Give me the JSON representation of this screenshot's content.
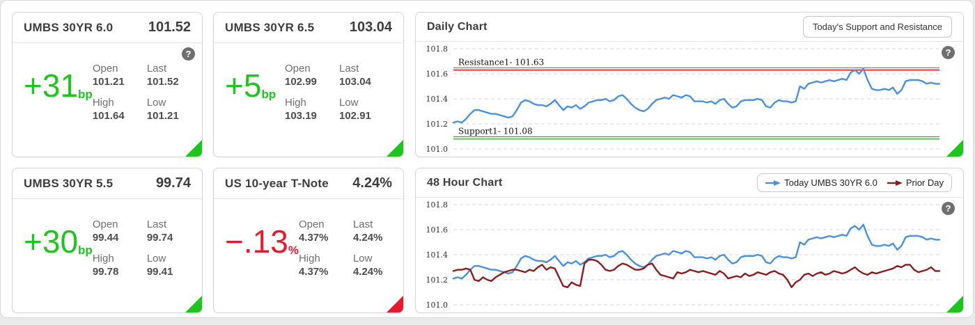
{
  "icons": {
    "help": "?"
  },
  "colors": {
    "up": "#1fc41f",
    "down": "#e8192d",
    "today_line": "#4a90e0",
    "prior_line": "#8e1b1b",
    "resistance_line": "#e02020",
    "support_line": "#2fd32f"
  },
  "stat_labels": {
    "open": "Open",
    "last": "Last",
    "high": "High",
    "low": "Low"
  },
  "cards": [
    {
      "title": "UMBS 30YR 6.0",
      "price": "101.52",
      "change": "+31",
      "change_unit": "bp",
      "trend": "up",
      "open": "101.21",
      "last": "101.52",
      "high": "101.64",
      "low": "101.21",
      "has_help": true
    },
    {
      "title": "UMBS 30YR 6.5",
      "price": "103.04",
      "change": "+5",
      "change_unit": "bp",
      "trend": "up",
      "open": "102.99",
      "last": "103.04",
      "high": "103.19",
      "low": "102.91",
      "has_help": false
    },
    {
      "title": "UMBS 30YR 5.5",
      "price": "99.74",
      "change": "+30",
      "change_unit": "bp",
      "trend": "up",
      "open": "99.44",
      "last": "99.74",
      "high": "99.78",
      "low": "99.41",
      "has_help": false
    },
    {
      "title": "US 10-year T-Note",
      "price": "4.24%",
      "change": "−.13",
      "change_unit": "%",
      "trend": "down",
      "open": "4.37%",
      "last": "4.24%",
      "high": "4.37%",
      "low": "4.24%",
      "has_help": false
    }
  ],
  "panels": {
    "daily": {
      "title": "Daily Chart",
      "button_label": "Today's Support and Resistance"
    },
    "hour48": {
      "title": "48 Hour Chart"
    }
  },
  "chart_data": [
    {
      "id": "chart-daily",
      "type": "line",
      "title": "Daily Chart",
      "ylim": [
        101.0,
        101.8
      ],
      "yticks": [
        101.8,
        101.6,
        101.4,
        101.2,
        101.0
      ],
      "ytick_labels": [
        "101.8",
        "101.6",
        "101.4",
        "101.2",
        "101.0"
      ],
      "grid": "dashed",
      "annotations": [
        {
          "label": "Resistance1- 101.63",
          "value": 101.63,
          "color": "#e02020"
        },
        {
          "label": "Support1- 101.08",
          "value": 101.08,
          "color": "#2fd32f"
        }
      ],
      "series": [
        {
          "name": "Today UMBS 30YR 6.0",
          "color": "#4a90e0",
          "values": [
            101.21,
            101.22,
            101.21,
            101.24,
            101.28,
            101.31,
            101.31,
            101.3,
            101.29,
            101.28,
            101.28,
            101.27,
            101.26,
            101.25,
            101.26,
            101.31,
            101.37,
            101.39,
            101.38,
            101.36,
            101.35,
            101.35,
            101.34,
            101.36,
            101.39,
            101.35,
            101.31,
            101.34,
            101.33,
            101.35,
            101.32,
            101.34,
            101.37,
            101.38,
            101.39,
            101.39,
            101.4,
            101.38,
            101.39,
            101.42,
            101.43,
            101.4,
            101.36,
            101.33,
            101.31,
            101.3,
            101.32,
            101.36,
            101.39,
            101.4,
            101.41,
            101.4,
            101.43,
            101.42,
            101.41,
            101.43,
            101.42,
            101.38,
            101.38,
            101.38,
            101.37,
            101.38,
            101.36,
            101.39,
            101.4,
            101.36,
            101.33,
            101.34,
            101.38,
            101.39,
            101.39,
            101.39,
            101.4,
            101.39,
            101.34,
            101.33,
            101.37,
            101.39,
            101.38,
            101.38,
            101.37,
            101.38,
            101.5,
            101.48,
            101.52,
            101.53,
            101.54,
            101.53,
            101.54,
            101.55,
            101.54,
            101.55,
            101.56,
            101.55,
            101.61,
            101.63,
            101.6,
            101.64,
            101.55,
            101.48,
            101.47,
            101.47,
            101.48,
            101.47,
            101.49,
            101.44,
            101.47,
            101.54,
            101.55,
            101.55,
            101.55,
            101.54,
            101.52,
            101.53,
            101.52,
            101.52
          ]
        }
      ]
    },
    {
      "id": "chart-48h",
      "type": "line",
      "title": "48 Hour Chart",
      "ylim": [
        101.0,
        101.8
      ],
      "yticks": [
        101.8,
        101.6,
        101.4,
        101.2,
        101.0
      ],
      "ytick_labels": [
        "101.8",
        "101.6",
        "101.4",
        "101.2",
        "101.0"
      ],
      "grid": "dashed",
      "legend_position": "top-right",
      "annotations": [],
      "series": [
        {
          "name": "Today UMBS 30YR 6.0",
          "color": "#4a90e0",
          "values": [
            101.21,
            101.22,
            101.21,
            101.24,
            101.28,
            101.31,
            101.31,
            101.3,
            101.29,
            101.28,
            101.28,
            101.27,
            101.26,
            101.25,
            101.26,
            101.31,
            101.37,
            101.39,
            101.38,
            101.36,
            101.35,
            101.35,
            101.34,
            101.36,
            101.39,
            101.35,
            101.31,
            101.34,
            101.33,
            101.35,
            101.32,
            101.34,
            101.37,
            101.38,
            101.39,
            101.39,
            101.4,
            101.38,
            101.39,
            101.42,
            101.43,
            101.4,
            101.36,
            101.33,
            101.31,
            101.3,
            101.32,
            101.36,
            101.39,
            101.4,
            101.41,
            101.4,
            101.43,
            101.42,
            101.41,
            101.43,
            101.42,
            101.38,
            101.38,
            101.38,
            101.37,
            101.38,
            101.36,
            101.39,
            101.4,
            101.36,
            101.33,
            101.34,
            101.38,
            101.39,
            101.39,
            101.39,
            101.4,
            101.39,
            101.34,
            101.33,
            101.37,
            101.39,
            101.38,
            101.38,
            101.37,
            101.38,
            101.5,
            101.48,
            101.52,
            101.53,
            101.54,
            101.53,
            101.54,
            101.55,
            101.54,
            101.55,
            101.56,
            101.55,
            101.61,
            101.63,
            101.6,
            101.64,
            101.55,
            101.48,
            101.47,
            101.47,
            101.48,
            101.47,
            101.49,
            101.44,
            101.47,
            101.54,
            101.55,
            101.55,
            101.55,
            101.54,
            101.52,
            101.53,
            101.52,
            101.52
          ]
        },
        {
          "name": "Prior Day",
          "color": "#8e1b1b",
          "values": [
            101.27,
            101.28,
            101.28,
            101.29,
            101.28,
            101.2,
            101.19,
            101.22,
            101.2,
            101.19,
            101.22,
            101.24,
            101.26,
            101.27,
            101.28,
            101.28,
            101.27,
            101.26,
            101.28,
            101.27,
            101.3,
            101.32,
            101.28,
            101.3,
            101.29,
            101.22,
            101.15,
            101.14,
            101.18,
            101.16,
            101.15,
            101.33,
            101.36,
            101.36,
            101.35,
            101.32,
            101.28,
            101.27,
            101.28,
            101.31,
            101.33,
            101.32,
            101.3,
            101.28,
            101.28,
            101.29,
            101.32,
            101.33,
            101.28,
            101.24,
            101.23,
            101.22,
            101.21,
            101.26,
            101.25,
            101.26,
            101.28,
            101.27,
            101.26,
            101.27,
            101.26,
            101.25,
            101.24,
            101.27,
            101.25,
            101.21,
            101.22,
            101.23,
            101.22,
            101.25,
            101.23,
            101.24,
            101.26,
            101.25,
            101.24,
            101.26,
            101.27,
            101.25,
            101.24,
            101.2,
            101.14,
            101.18,
            101.2,
            101.24,
            101.25,
            101.23,
            101.25,
            101.26,
            101.24,
            101.25,
            101.27,
            101.26,
            101.25,
            101.26,
            101.28,
            101.3,
            101.27,
            101.25,
            101.24,
            101.26,
            101.25,
            101.26,
            101.27,
            101.28,
            101.29,
            101.31,
            101.3,
            101.32,
            101.32,
            101.28,
            101.26,
            101.27,
            101.28,
            101.3,
            101.27,
            101.27
          ]
        }
      ]
    }
  ]
}
